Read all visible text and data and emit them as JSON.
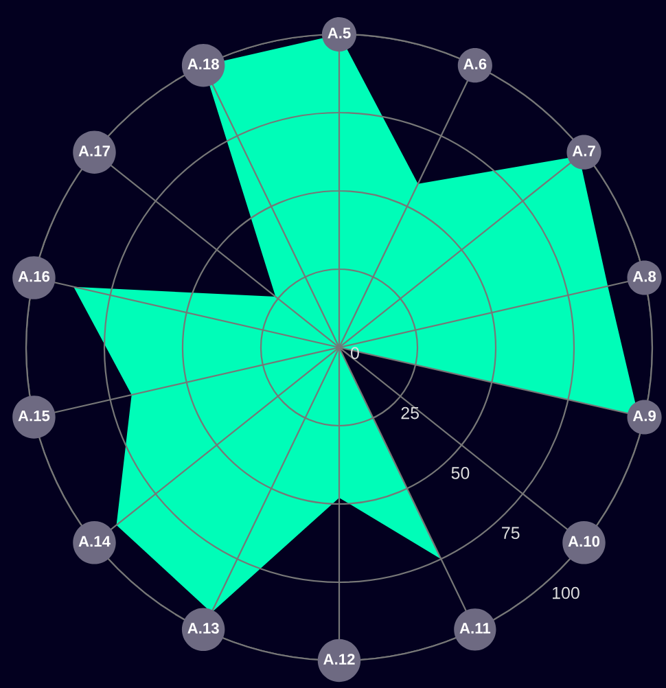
{
  "chart_data": {
    "type": "radar",
    "categories": [
      "A.5",
      "A.6",
      "A.7",
      "A.8",
      "A.9",
      "A.10",
      "A.11",
      "A.12",
      "A.13",
      "A.14",
      "A.15",
      "A.16",
      "A.17",
      "A.18"
    ],
    "series": [
      {
        "color": "#00fdb8",
        "values": [
          100,
          58,
          98,
          88,
          98,
          0,
          75,
          48,
          94,
          91,
          68,
          87,
          26,
          100
        ]
      }
    ],
    "ylim": [
      0,
      100
    ],
    "yticks": [
      0,
      25,
      50,
      75,
      100
    ],
    "grid": true,
    "marker": "none"
  }
}
